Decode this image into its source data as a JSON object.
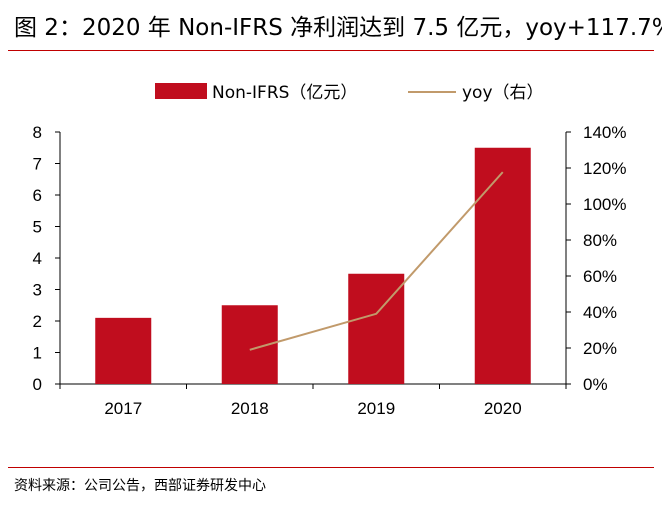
{
  "title": "图 2：2020 年 Non-IFRS 净利润达到 7.5 亿元，yoy+117.7%",
  "source": "资料来源：公司公告，西部证券研发中心",
  "colors": {
    "bar": "#c00d1e",
    "line": "#c19a6b",
    "rule": "#c00000"
  },
  "chart_data": {
    "type": "bar",
    "categories": [
      "2017",
      "2018",
      "2019",
      "2020"
    ],
    "series": [
      {
        "name": "Non-IFRS（亿元）",
        "type": "bar",
        "axis": "left",
        "values": [
          2.1,
          2.5,
          3.5,
          7.5
        ]
      },
      {
        "name": "yoy（右）",
        "type": "line",
        "axis": "right",
        "values": [
          null,
          19,
          39,
          117.7
        ]
      }
    ],
    "left_axis": {
      "ylim": [
        0,
        8
      ],
      "ticks": [
        "0",
        "1",
        "2",
        "3",
        "4",
        "5",
        "6",
        "7",
        "8"
      ]
    },
    "right_axis": {
      "ylim": [
        0,
        140
      ],
      "ticks": [
        "0%",
        "20%",
        "40%",
        "60%",
        "80%",
        "100%",
        "120%",
        "140%"
      ]
    },
    "legend_position": "top",
    "grid": false
  }
}
